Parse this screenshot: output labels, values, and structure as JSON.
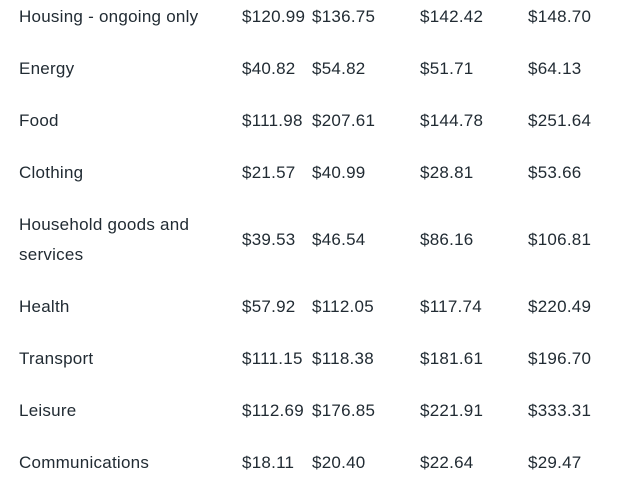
{
  "colors": {
    "background": "#ffffff",
    "text": "#212b33"
  },
  "chart_data": {
    "type": "table",
    "categories": [
      "Housing - ongoing only",
      "Energy",
      "Food",
      "Clothing",
      "Household goods and services",
      "Health",
      "Transport",
      "Leisure",
      "Communications"
    ],
    "series": [
      {
        "name": "column-1",
        "values": [
          120.99,
          40.82,
          111.98,
          21.57,
          39.53,
          57.92,
          111.15,
          112.69,
          18.11
        ]
      },
      {
        "name": "column-2",
        "values": [
          136.75,
          54.82,
          207.61,
          40.99,
          46.54,
          112.05,
          118.38,
          176.85,
          20.4
        ]
      },
      {
        "name": "column-3",
        "values": [
          142.42,
          51.71,
          144.78,
          28.81,
          86.16,
          117.74,
          181.61,
          221.91,
          22.64
        ]
      },
      {
        "name": "column-4",
        "values": [
          148.7,
          64.13,
          251.64,
          53.66,
          106.81,
          220.49,
          196.7,
          333.31,
          29.47
        ]
      }
    ],
    "unit": "$",
    "grid": "off",
    "legend": "none"
  },
  "table": {
    "rows": [
      {
        "label": "Housing - ongoing only",
        "values": [
          "$120.99",
          "$136.75",
          "$142.42",
          "$148.70"
        ]
      },
      {
        "label": "Energy",
        "values": [
          "$40.82",
          "$54.82",
          "$51.71",
          "$64.13"
        ]
      },
      {
        "label": "Food",
        "values": [
          "$111.98",
          "$207.61",
          "$144.78",
          "$251.64"
        ]
      },
      {
        "label": "Clothing",
        "values": [
          "$21.57",
          "$40.99",
          "$28.81",
          "$53.66"
        ]
      },
      {
        "label": "Household goods and services",
        "values": [
          "$39.53",
          "$46.54",
          "$86.16",
          "$106.81"
        ]
      },
      {
        "label": "Health",
        "values": [
          "$57.92",
          "$112.05",
          "$117.74",
          "$220.49"
        ]
      },
      {
        "label": "Transport",
        "values": [
          "$111.15",
          "$118.38",
          "$181.61",
          "$196.70"
        ]
      },
      {
        "label": "Leisure",
        "values": [
          "$112.69",
          "$176.85",
          "$221.91",
          "$333.31"
        ]
      },
      {
        "label": "Communications",
        "values": [
          "$18.11",
          "$20.40",
          "$22.64",
          "$29.47"
        ]
      }
    ]
  }
}
